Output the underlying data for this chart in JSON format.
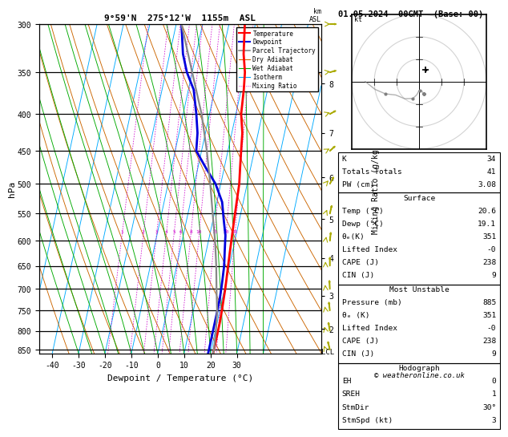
{
  "title_left": "9°59'N  275°12'W  1155m  ASL",
  "title_right": "01.05.2024  00GMT  (Base: 00)",
  "xlabel": "Dewpoint / Temperature (°C)",
  "ylabel_left": "hPa",
  "pressure_levels": [
    300,
    350,
    400,
    450,
    500,
    550,
    600,
    650,
    700,
    750,
    800,
    850
  ],
  "temp_range": [
    -45,
    35
  ],
  "temp_ticks": [
    -40,
    -30,
    -20,
    -10,
    0,
    10,
    20,
    30
  ],
  "p_min": 300,
  "p_max": 860,
  "skew_factor": 27,
  "isotherm_temps": [
    -50,
    -40,
    -30,
    -20,
    -10,
    0,
    10,
    20,
    30,
    40
  ],
  "dry_adiabat_thetas": [
    250,
    260,
    270,
    280,
    290,
    300,
    310,
    320,
    330,
    340,
    350,
    360,
    370,
    380,
    390,
    400,
    410,
    420,
    430,
    440
  ],
  "wet_adiabat_temps": [
    -30,
    -25,
    -20,
    -15,
    -10,
    -5,
    0,
    5,
    10,
    15,
    20,
    25,
    30,
    35,
    40
  ],
  "mixing_ratio_values": [
    1,
    2,
    3,
    4,
    5,
    6,
    8,
    10,
    15,
    20,
    25
  ],
  "mixing_ratio_label_p": 590,
  "isotherm_color": "#00aaff",
  "dry_adiabat_color": "#cc6600",
  "wet_adiabat_color": "#00aa00",
  "mixing_ratio_color": "#cc00cc",
  "temp_color": "#ff0000",
  "dewpoint_color": "#0000dd",
  "parcel_color": "#888888",
  "isobar_color": "#000000",
  "background": "#ffffff",
  "km_asl_labels": [
    "8",
    "7",
    "6",
    "5",
    "4",
    "3",
    "2"
  ],
  "km_asl_pressures": [
    363,
    425,
    490,
    560,
    634,
    715,
    795
  ],
  "lcl_pressure": 855,
  "temp_profile_p": [
    860,
    850,
    830,
    800,
    780,
    750,
    720,
    700,
    680,
    650,
    620,
    590,
    560,
    530,
    500,
    475,
    450,
    425,
    400,
    370,
    350,
    330,
    300
  ],
  "temp_profile_t": [
    21.0,
    21.0,
    21.0,
    21.0,
    21.0,
    20.8,
    20.5,
    20.3,
    20.0,
    19.5,
    19.0,
    18.5,
    18.0,
    17.5,
    17.0,
    16.0,
    15.0,
    14.0,
    12.0,
    11.0,
    10.0,
    8.0,
    6.0
  ],
  "dewp_profile_p": [
    860,
    850,
    830,
    800,
    780,
    750,
    720,
    700,
    680,
    650,
    620,
    590,
    560,
    530,
    500,
    475,
    450,
    425,
    400,
    370,
    350,
    330,
    300
  ],
  "dewp_profile_t": [
    19.1,
    19.1,
    19.1,
    19.1,
    19.1,
    19.1,
    19.0,
    18.8,
    18.5,
    18.0,
    17.0,
    16.0,
    14.0,
    12.0,
    8.0,
    3.0,
    -2.0,
    -3.0,
    -5.0,
    -8.0,
    -12.0,
    -15.0,
    -18.0
  ],
  "parcel_profile_p": [
    860,
    850,
    800,
    750,
    700,
    650,
    600,
    560,
    500,
    450,
    400,
    350,
    300
  ],
  "parcel_profile_t": [
    21.0,
    21.0,
    20.2,
    19.0,
    17.0,
    15.0,
    12.5,
    10.0,
    6.0,
    2.0,
    -3.0,
    -10.0,
    -18.0
  ],
  "wind_p": [
    300,
    350,
    400,
    450,
    500,
    550,
    600,
    650,
    700,
    750,
    800,
    850
  ],
  "wind_dir": [
    270,
    260,
    250,
    240,
    220,
    200,
    190,
    180,
    175,
    170,
    165,
    160
  ],
  "wind_spd": [
    12,
    10,
    8,
    6,
    5,
    4,
    3,
    2,
    2,
    2,
    2,
    3
  ],
  "info_K": 34,
  "info_TT": 41,
  "info_PW": "3.08",
  "info_surf_temp": "20.6",
  "info_surf_dewp": "19.1",
  "info_surf_thetae": "351",
  "info_surf_li": "-0",
  "info_surf_cape": "238",
  "info_surf_cin": "9",
  "info_mu_press": "885",
  "info_mu_thetae": "351",
  "info_mu_li": "-0",
  "info_mu_cape": "238",
  "info_mu_cin": "9",
  "info_eh": "0",
  "info_sreh": "1",
  "info_stmdir": "30°",
  "info_stmspd": "3",
  "copyright": "© weatheronline.co.uk"
}
